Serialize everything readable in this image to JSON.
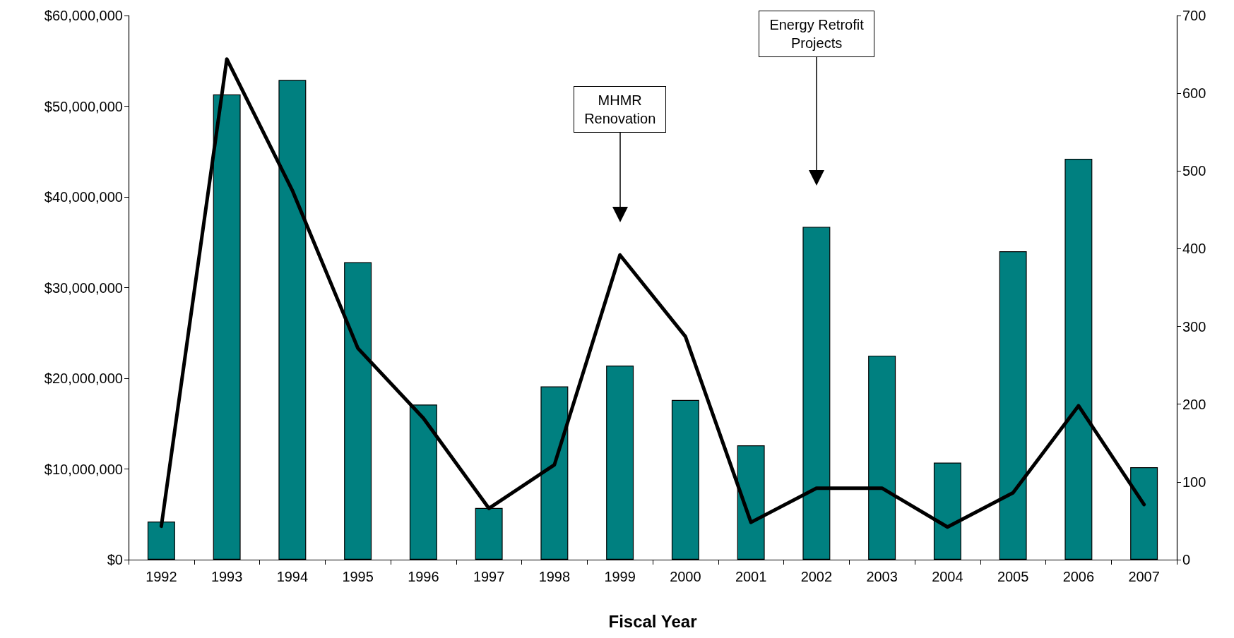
{
  "chart_data": {
    "type": "bar",
    "xlabel": "Fiscal Year",
    "categories": [
      "1992",
      "1993",
      "1994",
      "1995",
      "1996",
      "1997",
      "1998",
      "1999",
      "2000",
      "2001",
      "2002",
      "2003",
      "2004",
      "2005",
      "2006",
      "2007"
    ],
    "series": [
      {
        "color": "#008080",
        "values": [
          4200000,
          51300000,
          52900000,
          32800000,
          17100000,
          5700000,
          19100000,
          21400000,
          17600000,
          12600000,
          36700000,
          22500000,
          10700000,
          34000000,
          44200000,
          10200000
        ]
      },
      {
        "type": "line",
        "axis": "y2",
        "color": "#000000",
        "values": [
          43,
          644,
          475,
          272,
          182,
          66,
          122,
          392,
          287,
          48,
          92,
          92,
          42,
          86,
          198,
          71
        ]
      }
    ],
    "ylim": [
      0,
      60000000
    ],
    "yticks": [
      {
        "value": 0,
        "label": "$0"
      },
      {
        "value": 10000000,
        "label": "$10,000,000"
      },
      {
        "value": 20000000,
        "label": "$20,000,000"
      },
      {
        "value": 30000000,
        "label": "$30,000,000"
      },
      {
        "value": 40000000,
        "label": "$40,000,000"
      },
      {
        "value": 50000000,
        "label": "$50,000,000"
      },
      {
        "value": 60000000,
        "label": "$60,000,000"
      }
    ],
    "y2lim": [
      0,
      700
    ],
    "y2ticks": [
      0,
      100,
      200,
      300,
      400,
      500,
      600,
      700
    ],
    "annotations": [
      {
        "text": "MHMR\nRenovation",
        "x": "1999"
      },
      {
        "text": "Energy Retrofit\nProjects",
        "x": "2002"
      }
    ],
    "grid": false,
    "marker": "none",
    "line_style": "solid"
  }
}
